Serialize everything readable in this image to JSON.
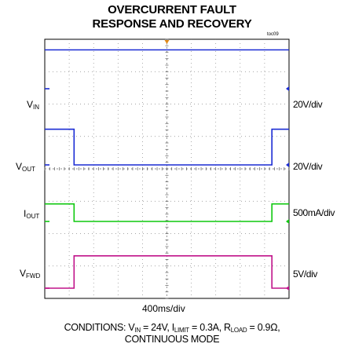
{
  "title_line1": "OVERCURRENT FAULT",
  "title_line2": "RESPONSE AND RECOVERY",
  "figure_code": "toc09",
  "timebase": "400ms/div",
  "channels": [
    {
      "label_main": "V",
      "label_sub": "IN",
      "scale": "20V/div",
      "color": "#1a2bd4"
    },
    {
      "label_main": "V",
      "label_sub": "OUT",
      "scale": "20V/div",
      "color": "#1a2bd4"
    },
    {
      "label_main": "I",
      "label_sub": "OUT",
      "scale": "500mA/div",
      "color": "#0fc80f"
    },
    {
      "label_main": "V",
      "label_sub": "FWD",
      "scale": "5V/div",
      "color": "#c0138a"
    }
  ],
  "conditions": {
    "line1_text": "CONDITIONS: V",
    "vin_sub": "IN",
    "vin_value": " = 24V, I",
    "ilimit_sub": "LIMIT",
    "ilimit_value": " = 0.3A, R",
    "rload_sub": "LOAD",
    "rload_value": " = 0.9Ω,",
    "line2": "CONTINUOUS MODE"
  },
  "chart_data": {
    "type": "line",
    "title": "OVERCURRENT FAULT RESPONSE AND RECOVERY",
    "xlabel": "400ms/div",
    "x_divisions": 10,
    "series": [
      {
        "name": "VIN",
        "unit": "V",
        "scale": "20V/div",
        "x": [
          0,
          10
        ],
        "y": [
          24,
          24
        ]
      },
      {
        "name": "VOUT",
        "unit": "V",
        "scale": "20V/div",
        "x": [
          0,
          1.2,
          1.2,
          9.3,
          9.3,
          10
        ],
        "y": [
          22,
          22,
          0,
          0,
          22,
          22
        ]
      },
      {
        "name": "IOUT",
        "unit": "mA",
        "scale": "500mA/div",
        "x": [
          0,
          1.2,
          1.2,
          9.3,
          9.3,
          10
        ],
        "y": [
          270,
          270,
          0,
          0,
          270,
          270
        ]
      },
      {
        "name": "VFWD",
        "unit": "V",
        "scale": "5V/div",
        "x": [
          0,
          1.2,
          1.2,
          9.3,
          9.3,
          10
        ],
        "y": [
          0,
          0,
          5,
          5,
          0,
          0
        ]
      }
    ]
  }
}
